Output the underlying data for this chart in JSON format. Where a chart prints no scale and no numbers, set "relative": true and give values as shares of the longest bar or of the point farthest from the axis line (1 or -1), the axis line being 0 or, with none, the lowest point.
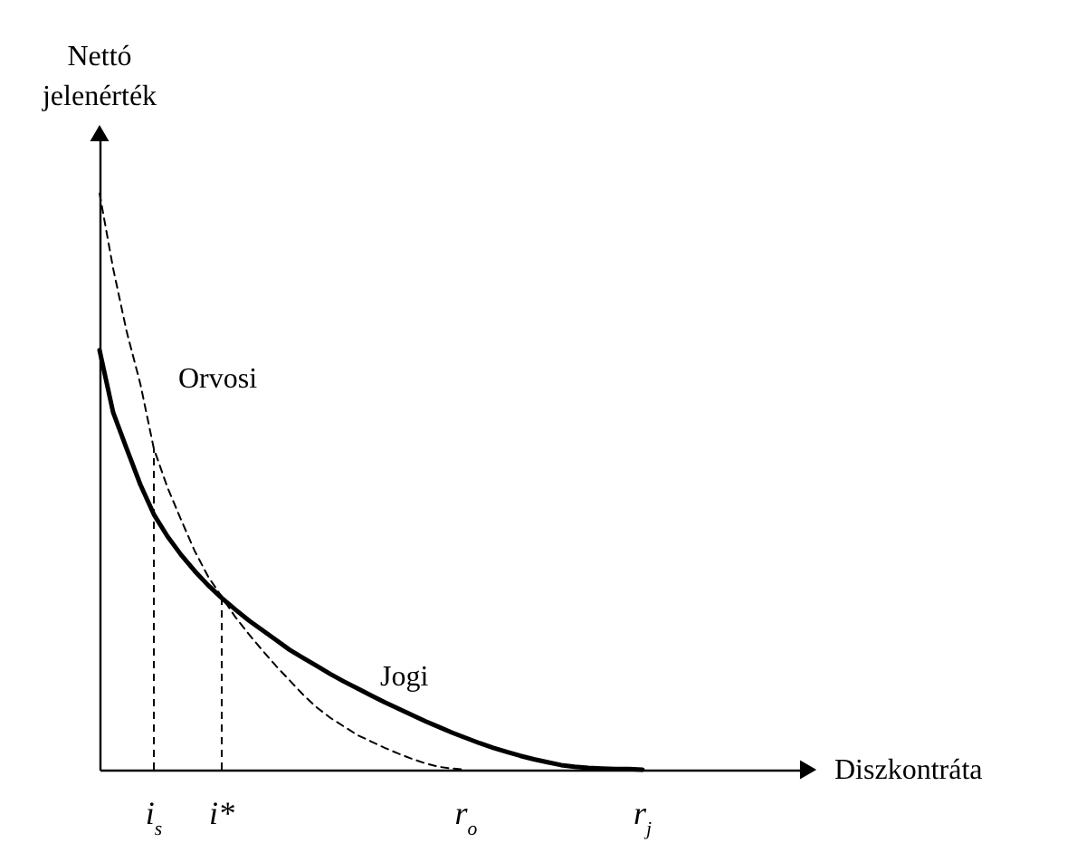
{
  "chart_data": {
    "type": "line",
    "relative": true,
    "xlabel": "Diszkontráta",
    "ylabel": "Nettó jelenérték",
    "grid": false,
    "legend": false,
    "categories": [
      null,
      null,
      null,
      null,
      "i$_{s}$",
      null,
      null,
      null,
      null,
      "i*",
      null,
      null,
      null,
      null,
      null,
      null,
      null,
      null,
      null,
      null,
      null,
      null,
      null,
      null,
      null,
      null,
      null,
      "r$_{o}$",
      null,
      null,
      null,
      null,
      null,
      null,
      null,
      null,
      null,
      null,
      null,
      null,
      "r$_{j}$",
      null,
      null,
      null,
      null,
      null,
      null,
      null,
      null,
      null,
      null,
      null,
      null
    ],
    "series": [
      {
        "name": "Orvosi",
        "color": "#000000",
        "line_style": "dashed",
        "values": [
          1,
          0.87,
          0.76,
          0.67,
          0.557,
          0.49,
          0.434,
          0.38,
          0.335,
          0.3,
          0.265,
          0.235,
          0.207,
          0.18,
          0.155,
          0.13,
          0.108,
          0.09,
          0.075,
          0.06,
          0.049,
          0.038,
          0.028,
          0.019,
          0.011,
          0.005,
          0.002,
          0,
          null,
          null,
          null,
          null,
          null,
          null,
          null,
          null,
          null,
          null,
          null,
          null,
          null,
          null,
          null,
          null,
          null,
          null,
          null,
          null,
          null,
          null,
          null,
          null,
          null
        ]
      },
      {
        "name": "Jogi",
        "color": "#000000",
        "line_style": "solid",
        "values": [
          0.728,
          0.62,
          0.557,
          0.495,
          0.443,
          0.405,
          0.373,
          0.345,
          0.32,
          0.298,
          0.278,
          0.259,
          0.242,
          0.225,
          0.208,
          0.194,
          0.18,
          0.166,
          0.153,
          0.141,
          0.129,
          0.117,
          0.106,
          0.095,
          0.084,
          0.074,
          0.064,
          0.055,
          0.046,
          0.038,
          0.031,
          0.024,
          0.018,
          0.013,
          0.008,
          0.005,
          0.003,
          0.002,
          0.001,
          0.001,
          0,
          null,
          null,
          null,
          null,
          null,
          null,
          null,
          null,
          null,
          null,
          null,
          null
        ]
      }
    ],
    "ref_lines": [
      {
        "axis": "x",
        "value": "i$_{s}$",
        "line_style": "dashed"
      },
      {
        "axis": "x",
        "value": "i*",
        "line_style": "dashed"
      }
    ]
  }
}
